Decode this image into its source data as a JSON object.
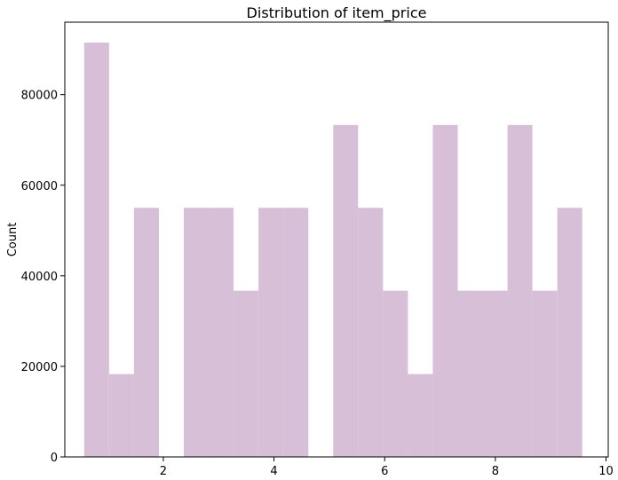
{
  "chart_data": {
    "type": "bar",
    "title": "Distribution of item_price",
    "xlabel": "",
    "ylabel": "Count",
    "bin_edges": [
      0.57,
      1.02,
      1.47,
      1.92,
      2.37,
      2.82,
      3.27,
      3.72,
      4.17,
      4.62,
      5.07,
      5.52,
      5.97,
      6.42,
      6.87,
      7.32,
      7.77,
      8.22,
      8.67,
      9.12,
      9.57
    ],
    "values": [
      91500,
      18300,
      55000,
      0,
      55000,
      55000,
      36700,
      55000,
      55000,
      0,
      73300,
      55000,
      36700,
      18300,
      73300,
      36700,
      36700,
      73300,
      36700,
      55000
    ],
    "xlim": [
      0.22,
      10.04
    ],
    "ylim": [
      0,
      96000
    ],
    "xticks": [
      2,
      4,
      6,
      8,
      10
    ],
    "yticks": [
      0,
      20000,
      40000,
      60000,
      80000
    ],
    "grid": false,
    "bar_color": "#d8bfd8"
  }
}
